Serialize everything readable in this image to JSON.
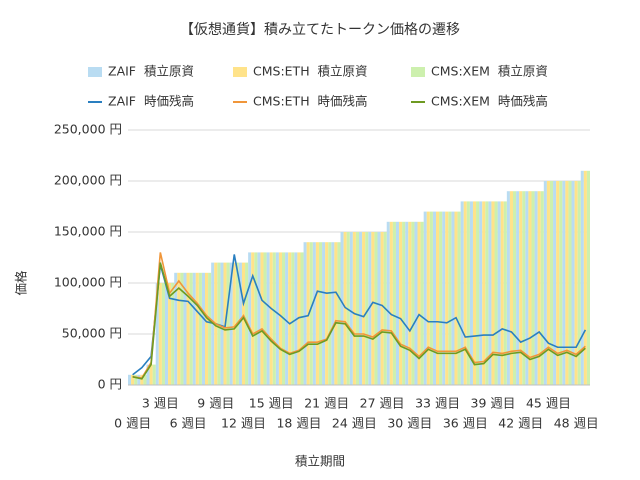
{
  "chart_data": {
    "type": "combo",
    "title": "【仮想通貨】積み立てたトークン価格の遷移",
    "x_label": "積立期間",
    "y_label": "価格",
    "categories": [
      "0 週目",
      null,
      null,
      "3 週目",
      null,
      null,
      "6 週目",
      null,
      null,
      "9 週目",
      null,
      null,
      "12 週目",
      null,
      null,
      "15 週目",
      null,
      null,
      "18 週目",
      null,
      null,
      "21 週目",
      null,
      null,
      "24 週目",
      null,
      null,
      "27 週目",
      null,
      null,
      "30 週目",
      null,
      null,
      "33 週目",
      null,
      null,
      "36 週目",
      null,
      null,
      "39 週目",
      null,
      null,
      "42 週目",
      null,
      null,
      "45 週目",
      null,
      null,
      "48 週目",
      null
    ],
    "ylim": [
      0,
      250000
    ],
    "yticks": [
      {
        "value": 0,
        "label": "0 円"
      },
      {
        "value": 50000,
        "label": "50,000 円"
      },
      {
        "value": 100000,
        "label": "100,000 円"
      },
      {
        "value": 150000,
        "label": "150,000 円"
      },
      {
        "value": 200000,
        "label": "200,000 円"
      },
      {
        "value": 250000,
        "label": "250,000 円"
      }
    ],
    "grid": true,
    "series": [
      {
        "name": "ZAIF  積立原資",
        "type": "bar",
        "color": "#b9dcf2",
        "values": [
          10000,
          10000,
          20000,
          100000,
          100000,
          110000,
          110000,
          110000,
          110000,
          120000,
          120000,
          120000,
          120000,
          130000,
          130000,
          130000,
          130000,
          130000,
          130000,
          140000,
          140000,
          140000,
          140000,
          150000,
          150000,
          150000,
          150000,
          150000,
          160000,
          160000,
          160000,
          160000,
          170000,
          170000,
          170000,
          170000,
          180000,
          180000,
          180000,
          180000,
          180000,
          190000,
          190000,
          190000,
          190000,
          200000,
          200000,
          200000,
          200000,
          210000
        ]
      },
      {
        "name": "CMS:ETH  積立原資",
        "type": "bar",
        "color": "#ffe38a",
        "values": [
          10000,
          10000,
          20000,
          100000,
          100000,
          110000,
          110000,
          110000,
          110000,
          120000,
          120000,
          120000,
          120000,
          130000,
          130000,
          130000,
          130000,
          130000,
          130000,
          140000,
          140000,
          140000,
          140000,
          150000,
          150000,
          150000,
          150000,
          150000,
          160000,
          160000,
          160000,
          160000,
          170000,
          170000,
          170000,
          170000,
          180000,
          180000,
          180000,
          180000,
          180000,
          190000,
          190000,
          190000,
          190000,
          200000,
          200000,
          200000,
          200000,
          210000
        ]
      },
      {
        "name": "CMS:XEM  積立原資",
        "type": "bar",
        "color": "#cdf0ae",
        "values": [
          10000,
          10000,
          20000,
          100000,
          100000,
          110000,
          110000,
          110000,
          110000,
          120000,
          120000,
          120000,
          120000,
          130000,
          130000,
          130000,
          130000,
          130000,
          130000,
          140000,
          140000,
          140000,
          140000,
          150000,
          150000,
          150000,
          150000,
          150000,
          160000,
          160000,
          160000,
          160000,
          170000,
          170000,
          170000,
          170000,
          180000,
          180000,
          180000,
          180000,
          180000,
          190000,
          190000,
          190000,
          190000,
          200000,
          200000,
          200000,
          200000,
          210000
        ]
      },
      {
        "name": "ZAIF  時価残高",
        "type": "line",
        "color": "#2a7fc0",
        "values": [
          10000,
          17000,
          28000,
          118000,
          85000,
          83000,
          82000,
          72000,
          62000,
          60000,
          57000,
          128000,
          80000,
          107000,
          83000,
          75000,
          68000,
          60000,
          66000,
          68000,
          92000,
          90000,
          91000,
          76000,
          70000,
          67000,
          81000,
          78000,
          69000,
          65000,
          53000,
          69000,
          62000,
          62000,
          61000,
          66000,
          47000,
          48000,
          49000,
          49000,
          55000,
          52000,
          42000,
          46000,
          52000,
          41000,
          37000,
          37000,
          37000,
          54000
        ]
      },
      {
        "name": "CMS:ETH  時価残高",
        "type": "line",
        "color": "#f0963a",
        "values": [
          8000,
          7000,
          22000,
          130000,
          90000,
          102000,
          90000,
          80000,
          68000,
          60000,
          56000,
          57000,
          68000,
          50000,
          55000,
          45000,
          36000,
          31000,
          34000,
          42000,
          42000,
          45000,
          63000,
          62000,
          50000,
          50000,
          47000,
          54000,
          53000,
          40000,
          36000,
          28000,
          37000,
          33000,
          33000,
          33000,
          37000,
          22000,
          23000,
          32000,
          31000,
          33000,
          34000,
          27000,
          30000,
          37000,
          31000,
          34000,
          30000,
          38000
        ]
      },
      {
        "name": "CMS:XEM  時価残高",
        "type": "line",
        "color": "#6e9a22",
        "values": [
          8000,
          6000,
          20000,
          120000,
          87000,
          95000,
          87000,
          78000,
          66000,
          58000,
          54000,
          55000,
          66000,
          48000,
          53000,
          43000,
          35000,
          30000,
          33000,
          40000,
          40000,
          44000,
          61000,
          60000,
          48000,
          48000,
          45000,
          52000,
          51000,
          38000,
          34000,
          26000,
          35000,
          31000,
          31000,
          31000,
          35000,
          20000,
          21000,
          30000,
          29000,
          31000,
          32000,
          25000,
          28000,
          35000,
          29000,
          32000,
          28000,
          36000
        ]
      }
    ]
  }
}
